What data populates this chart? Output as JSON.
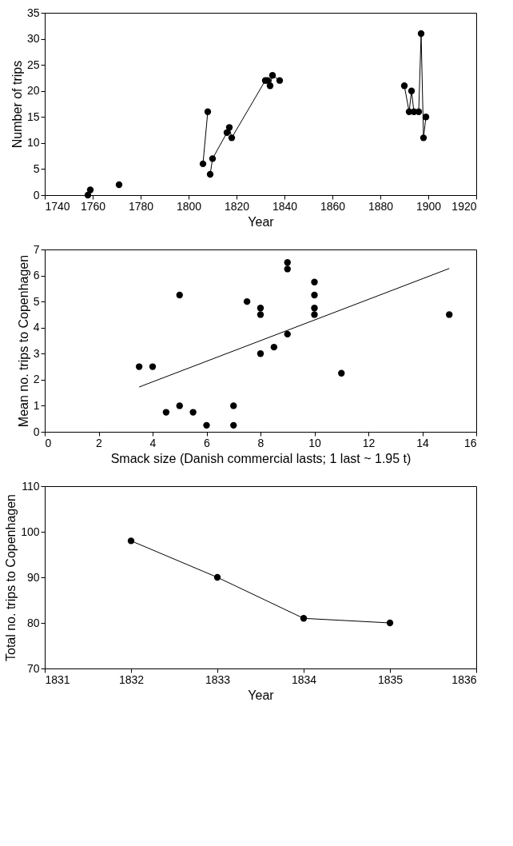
{
  "chart_data": [
    {
      "type": "line",
      "xlabel": "Year",
      "ylabel": "Number of trips",
      "xlim": [
        1740,
        1920
      ],
      "xticks": [
        1740,
        1760,
        1780,
        1800,
        1820,
        1840,
        1860,
        1880,
        1900,
        1920
      ],
      "ylim": [
        0,
        35
      ],
      "yticks": [
        0,
        5,
        10,
        15,
        20,
        25,
        30,
        35
      ],
      "grid": false,
      "marker": "circle",
      "line_style": "solid",
      "series": [
        {
          "type": "scatter",
          "color": "#000000",
          "x": [
            1758,
            1759,
            1771
          ],
          "values": [
            0,
            1,
            2
          ]
        },
        {
          "color": "#000000",
          "x": [
            1806,
            1808
          ],
          "values": [
            6,
            16
          ]
        },
        {
          "color": "#000000",
          "x": [
            1809,
            1810,
            1816,
            1817,
            1818,
            1832,
            1833,
            1834,
            1835,
            1838
          ],
          "values": [
            4,
            7,
            12,
            13,
            11,
            22,
            22,
            21,
            23,
            22
          ]
        },
        {
          "color": "#000000",
          "x": [
            1890,
            1892,
            1893,
            1894,
            1896,
            1897,
            1898,
            1899
          ],
          "values": [
            21,
            16,
            20,
            16,
            16,
            31,
            11,
            15
          ]
        }
      ]
    },
    {
      "type": "scatter",
      "xlabel": "Smack size (Danish commercial lasts; 1 last ~ 1.95 t)",
      "ylabel": "Mean no. trips to Copenhagen",
      "xlim": [
        0,
        16
      ],
      "xticks": [
        0,
        2,
        4,
        6,
        8,
        10,
        12,
        14,
        16
      ],
      "ylim": [
        0,
        7
      ],
      "yticks": [
        0,
        1,
        2,
        3,
        4,
        5,
        6,
        7
      ],
      "grid": false,
      "marker": "circle",
      "series": [
        {
          "color": "#000000",
          "x": [
            3.5,
            4,
            4.5,
            5,
            5,
            5.5,
            6,
            7,
            7,
            7.5,
            8,
            8,
            8,
            8.5,
            9,
            9,
            9,
            10,
            10,
            10,
            10,
            11,
            15
          ],
          "values": [
            2.5,
            2.5,
            0.75,
            1,
            5.25,
            0.75,
            0.25,
            1,
            0.25,
            5,
            4.75,
            4.5,
            3,
            3.25,
            6.5,
            6.25,
            3.75,
            5.75,
            5.25,
            4.75,
            4.5,
            2.25,
            4.5
          ]
        },
        {
          "type": "line",
          "color": "#000000",
          "marker": "none",
          "line_style": "solid",
          "x": [
            3.5,
            15
          ],
          "values": [
            1.72,
            6.27
          ]
        }
      ]
    },
    {
      "type": "line",
      "xlabel": "Year",
      "ylabel": "Total no. trips to Copenhagen",
      "xlim": [
        1831,
        1836
      ],
      "xticks": [
        1831,
        1832,
        1833,
        1834,
        1835,
        1836
      ],
      "ylim": [
        70,
        110
      ],
      "yticks": [
        70,
        80,
        90,
        100,
        110
      ],
      "grid": false,
      "marker": "circle",
      "line_style": "solid",
      "series": [
        {
          "color": "#000000",
          "x": [
            1832,
            1833,
            1834,
            1835
          ],
          "values": [
            98,
            90,
            81,
            80
          ]
        }
      ]
    }
  ]
}
